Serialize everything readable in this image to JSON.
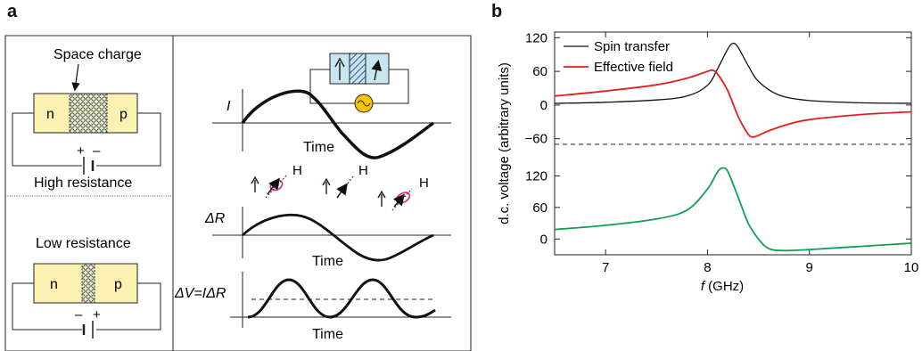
{
  "panel_a": {
    "letter": "a",
    "space_charge": "Space charge",
    "n": "n",
    "p": "p",
    "high_resistance": "High resistance",
    "low_resistance": "Low resistance",
    "plus": "+",
    "minus": "–",
    "I_label": "I",
    "time": "Time",
    "H": "H",
    "dR_label": "ΔR",
    "dV_label": "ΔV=IΔR"
  },
  "panel_b": {
    "letter": "b",
    "ylabel": "d.c. voltage (arbitrary units)",
    "xlabel_italic": "f",
    "xlabel_rest": " (GHz)",
    "legend_spin": "Spin transfer",
    "legend_field": "Effective field"
  },
  "chart_data": [
    {
      "type": "line",
      "panel": "b-top",
      "xlim": [
        6.5,
        10
      ],
      "ylim": [
        -70,
        130
      ],
      "yticks": [
        120,
        60,
        0,
        -60
      ],
      "legend": "top-left",
      "colors": {
        "Spin transfer": "#111111",
        "Effective field": "#e02020"
      },
      "series": [
        {
          "name": "Spin transfer",
          "x": [
            6.5,
            7.0,
            7.5,
            7.8,
            8.0,
            8.1,
            8.2,
            8.25,
            8.3,
            8.4,
            8.5,
            8.7,
            9.0,
            9.5,
            10.0
          ],
          "y": [
            3,
            5,
            9,
            16,
            35,
            65,
            100,
            110,
            103,
            70,
            42,
            18,
            8,
            4,
            3
          ]
        },
        {
          "name": "Effective field",
          "x": [
            6.5,
            7.0,
            7.5,
            7.8,
            8.0,
            8.05,
            8.1,
            8.2,
            8.3,
            8.4,
            8.45,
            8.5,
            8.6,
            8.8,
            9.0,
            9.5,
            10.0
          ],
          "y": [
            16,
            25,
            36,
            48,
            60,
            62,
            55,
            25,
            -20,
            -52,
            -57,
            -54,
            -46,
            -34,
            -26,
            -17,
            -12
          ]
        }
      ]
    },
    {
      "type": "line",
      "panel": "b-bottom",
      "xlim": [
        6.5,
        10
      ],
      "ylim": [
        -30,
        180
      ],
      "xticks": [
        7,
        8,
        9,
        10
      ],
      "yticks": [
        120,
        60,
        0
      ],
      "colors": {
        "series": "#10a050"
      },
      "series": [
        {
          "x": [
            6.5,
            7.0,
            7.5,
            7.8,
            8.0,
            8.1,
            8.15,
            8.2,
            8.3,
            8.4,
            8.5,
            8.6,
            8.75,
            9.0,
            9.5,
            10.0
          ],
          "y": [
            18,
            26,
            38,
            55,
            95,
            128,
            135,
            128,
            80,
            30,
            0,
            -18,
            -22,
            -20,
            -14,
            -8
          ]
        }
      ]
    }
  ]
}
